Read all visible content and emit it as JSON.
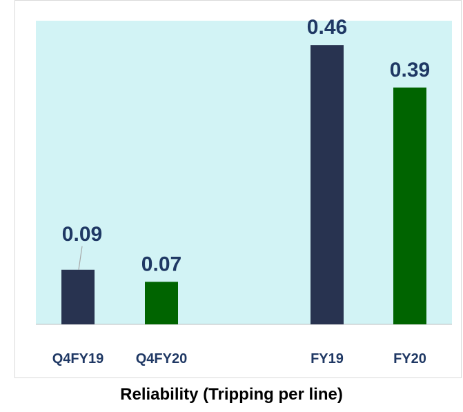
{
  "chart_data": {
    "type": "bar",
    "title": "Reliability (Tripping per line)",
    "categories": [
      "Q4FY19",
      "Q4FY20",
      "FY19",
      "FY20"
    ],
    "values": [
      0.09,
      0.07,
      0.46,
      0.39
    ],
    "bar_colors": [
      "#283350",
      "#006400",
      "#283350",
      "#006400"
    ],
    "ylim": [
      0,
      0.5
    ],
    "grid": false,
    "legend": "none",
    "plot_background": "#d2f3f5",
    "label_color": "#1f3864"
  }
}
